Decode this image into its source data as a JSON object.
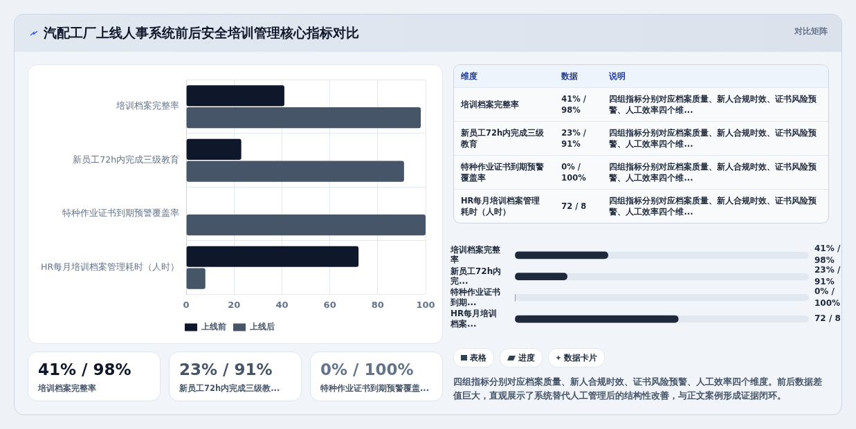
{
  "chart_data": [
    {
      "type": "bar",
      "title": "汽配工厂上线人事系统前后安全培训管理核心指标对比",
      "annotations": [
        "对比矩阵"
      ],
      "orientation": "horizontal",
      "categories": [
        "培训档案完整率",
        "新员工72h内完成三级教育",
        "特种作业证书到期预警覆盖率",
        "HR每月培训档案管理耗时（人时）"
      ],
      "series": [
        {
          "name": "上线前",
          "color": "#0f172a",
          "values": [
            41,
            23,
            0,
            72
          ]
        },
        {
          "name": "上线后",
          "color": "#475569",
          "values": [
            98,
            91,
            100,
            8
          ]
        }
      ],
      "xlim": [
        0,
        100
      ],
      "xticks": [
        0,
        20,
        40,
        60,
        80,
        100
      ],
      "grid": true,
      "legend": "bottom"
    },
    {
      "type": "other",
      "annotations": [
        "维度",
        "数据",
        "说明",
        "培训档案完整率",
        "41% / 98%",
        "四组指标分别对应档案质量、新人合规时效、证书风险预警、人工效率四个维...",
        "新员工72h内完成三级教育",
        "23% / 91%",
        "四组指标分别对应档案质量、新人合规时效、证书风险预警、人工效率四个维...",
        "特种作业证书到期预警覆盖率",
        "0% / 100%",
        "四组指标分别对应档案质量、新人合规时效、证书风险预警、人工效率四个维...",
        "HR每月培训档案管理耗时（人时）",
        "72 / 8",
        "四组指标分别对应档案质量、新人合规时效、证书风险预警、人工效率四个维..."
      ]
    },
    {
      "type": "bar",
      "orientation": "horizontal",
      "categories": [
        "培训档案完整率",
        "新员工72h内完...",
        "特种作业证书到期...",
        "HR每月培训档案..."
      ],
      "values": [
        41,
        23,
        0,
        72
      ],
      "color": "#1e293b",
      "value_labels": [
        "41% / 98%",
        "23% / 91%",
        "0% / 100%",
        "72 / 8"
      ]
    },
    {
      "type": "other",
      "categories": [
        "培训档案完整率",
        "新员工72h内完成三级教...",
        "特种作业证书到期预警覆盖..."
      ],
      "value_labels": [
        "41% / 98%",
        "23% / 91%",
        "0% / 100%"
      ]
    },
    {
      "type": "other",
      "categories": [
        "表格",
        "进度",
        "数据卡片"
      ],
      "annotations": [
        "四组指标分别对应档案质量、新人合规时效、证书风险预警、人工效率四个维度。前后数据差值巨大，直观展示了系统替代人工管理后的结构性改善，与正文案例形成证据闭环。"
      ]
    }
  ]
}
